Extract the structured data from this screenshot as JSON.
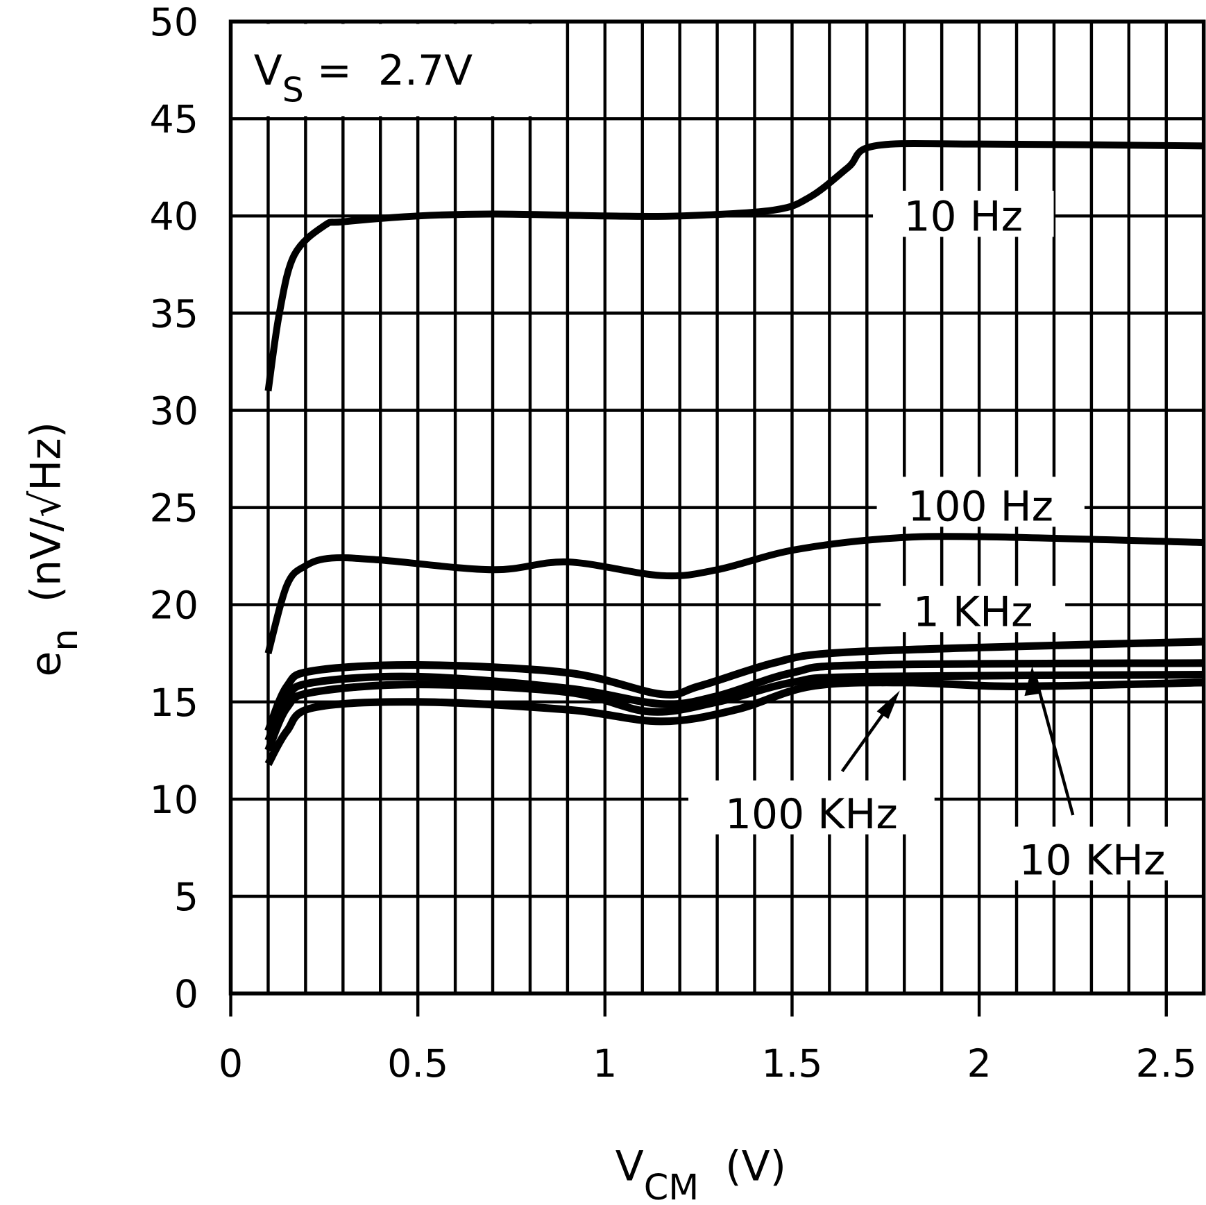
{
  "chart_data": {
    "type": "line",
    "title": "",
    "annotation": {
      "main": "V",
      "sub": "S",
      "rest": " =  2.7V"
    },
    "xlabel": {
      "main": "V",
      "sub": "CM",
      "rest": "  (V)"
    },
    "ylabel": {
      "main": "e",
      "sub": "n",
      "rest": "  (nV/√Hz)"
    },
    "xlim": [
      0,
      2.6
    ],
    "ylim": [
      0,
      50
    ],
    "xticks": [
      "0",
      "0.5",
      "1",
      "1.5",
      "2",
      "2.5"
    ],
    "xtick_values": [
      0,
      0.5,
      1,
      1.5,
      2,
      2.5
    ],
    "yticks": [
      "0",
      "5",
      "10",
      "15",
      "20",
      "25",
      "30",
      "35",
      "40",
      "45",
      "50"
    ],
    "ytick_values": [
      0,
      5,
      10,
      15,
      20,
      25,
      30,
      35,
      40,
      45,
      50
    ],
    "grid": true,
    "x_grid_step": 0.1,
    "series": [
      {
        "name": "10 Hz",
        "x": [
          0.1,
          0.13,
          0.17,
          0.25,
          0.3,
          0.5,
          0.7,
          1.0,
          1.2,
          1.45,
          1.55,
          1.65,
          1.72,
          2.0,
          2.6
        ],
        "y": [
          31,
          35,
          38,
          39.5,
          39.7,
          40,
          40.1,
          40,
          40,
          40.3,
          41,
          42.5,
          43.6,
          43.7,
          43.6
        ]
      },
      {
        "name": "100 Hz",
        "x": [
          0.1,
          0.15,
          0.2,
          0.27,
          0.4,
          0.7,
          0.9,
          1.15,
          1.3,
          1.5,
          1.75,
          2.0,
          2.6
        ],
        "y": [
          17.5,
          21,
          22,
          22.4,
          22.3,
          21.8,
          22.2,
          21.5,
          21.8,
          22.8,
          23.4,
          23.5,
          23.2
        ]
      },
      {
        "name": "1 KHz",
        "x": [
          0.1,
          0.15,
          0.22,
          0.5,
          0.9,
          1.15,
          1.25,
          1.45,
          1.6,
          2.0,
          2.6
        ],
        "y": [
          13.5,
          15.8,
          16.6,
          16.9,
          16.5,
          15.4,
          15.8,
          17,
          17.5,
          17.8,
          18.1
        ]
      },
      {
        "name": "10 KHz",
        "x": [
          0.1,
          0.15,
          0.22,
          0.5,
          0.9,
          1.15,
          1.3,
          1.5,
          1.7,
          2.6
        ],
        "y": [
          13,
          15.2,
          16,
          16.3,
          15.7,
          14.9,
          15.3,
          16.5,
          16.9,
          17.0
        ]
      },
      {
        "name": "",
        "x": [
          0.1,
          0.15,
          0.22,
          0.5,
          0.9,
          1.12,
          1.3,
          1.5,
          1.7,
          2.6
        ],
        "y": [
          12.5,
          14.7,
          15.5,
          15.9,
          15.5,
          14.5,
          15,
          16,
          16.3,
          16.4
        ]
      },
      {
        "name": "100 KHz",
        "x": [
          0.1,
          0.15,
          0.22,
          0.5,
          0.9,
          1.15,
          1.35,
          1.55,
          1.8,
          2.1,
          2.6
        ],
        "y": [
          11.8,
          13.5,
          14.7,
          15,
          14.6,
          14,
          14.6,
          15.8,
          16,
          15.8,
          16
        ]
      }
    ],
    "labels": [
      "10 Hz",
      "100 Hz",
      "1 KHz",
      "100 KHz",
      "10 KHz"
    ]
  }
}
